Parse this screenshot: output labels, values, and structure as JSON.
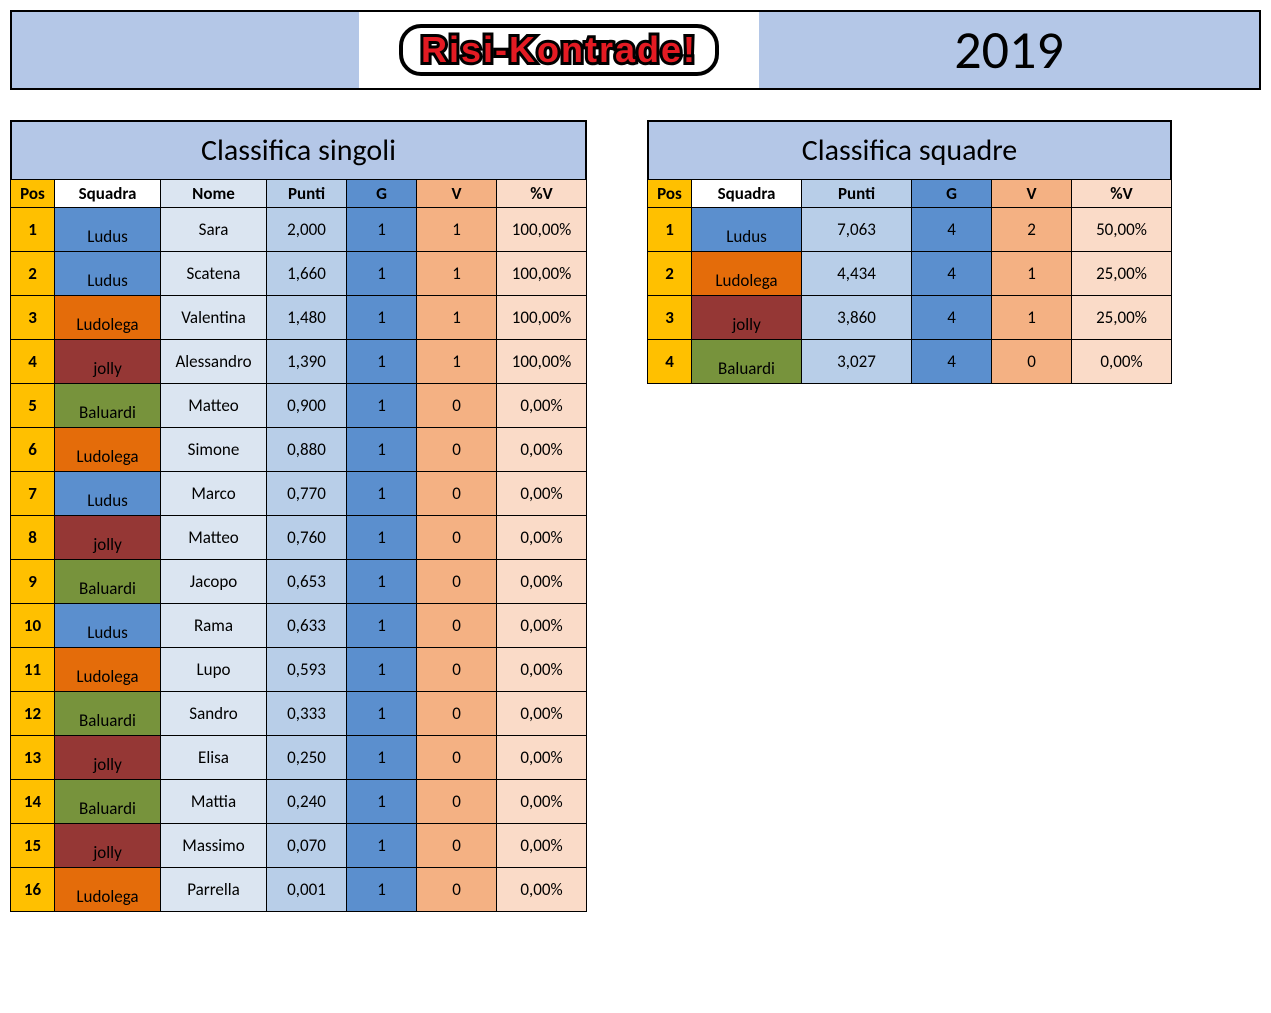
{
  "header": {
    "logo_text": "Risi-Kontrade!",
    "year": "2019"
  },
  "team_colors": {
    "Ludus": "#5b8fce",
    "Ludolega": "#e46c0a",
    "jolly": "#953735",
    "Baluardi": "#77933c"
  },
  "singles": {
    "title": "Classifica singoli",
    "columns": {
      "pos": "Pos",
      "squadra": "Squadra",
      "nome": "Nome",
      "punti": "Punti",
      "g": "G",
      "v": "V",
      "pv": "%V"
    },
    "rows": [
      {
        "pos": "1",
        "squadra": "Ludus",
        "nome": "Sara",
        "punti": "2,000",
        "g": "1",
        "v": "1",
        "pv": "100,00%"
      },
      {
        "pos": "2",
        "squadra": "Ludus",
        "nome": "Scatena",
        "punti": "1,660",
        "g": "1",
        "v": "1",
        "pv": "100,00%"
      },
      {
        "pos": "3",
        "squadra": "Ludolega",
        "nome": "Valentina",
        "punti": "1,480",
        "g": "1",
        "v": "1",
        "pv": "100,00%"
      },
      {
        "pos": "4",
        "squadra": "jolly",
        "nome": "Alessandro",
        "punti": "1,390",
        "g": "1",
        "v": "1",
        "pv": "100,00%"
      },
      {
        "pos": "5",
        "squadra": "Baluardi",
        "nome": "Matteo",
        "punti": "0,900",
        "g": "1",
        "v": "0",
        "pv": "0,00%"
      },
      {
        "pos": "6",
        "squadra": "Ludolega",
        "nome": "Simone",
        "punti": "0,880",
        "g": "1",
        "v": "0",
        "pv": "0,00%"
      },
      {
        "pos": "7",
        "squadra": "Ludus",
        "nome": "Marco",
        "punti": "0,770",
        "g": "1",
        "v": "0",
        "pv": "0,00%"
      },
      {
        "pos": "8",
        "squadra": "jolly",
        "nome": "Matteo",
        "punti": "0,760",
        "g": "1",
        "v": "0",
        "pv": "0,00%"
      },
      {
        "pos": "9",
        "squadra": "Baluardi",
        "nome": "Jacopo",
        "punti": "0,653",
        "g": "1",
        "v": "0",
        "pv": "0,00%"
      },
      {
        "pos": "10",
        "squadra": "Ludus",
        "nome": "Rama",
        "punti": "0,633",
        "g": "1",
        "v": "0",
        "pv": "0,00%"
      },
      {
        "pos": "11",
        "squadra": "Ludolega",
        "nome": "Lupo",
        "punti": "0,593",
        "g": "1",
        "v": "0",
        "pv": "0,00%"
      },
      {
        "pos": "12",
        "squadra": "Baluardi",
        "nome": "Sandro",
        "punti": "0,333",
        "g": "1",
        "v": "0",
        "pv": "0,00%"
      },
      {
        "pos": "13",
        "squadra": "jolly",
        "nome": "Elisa",
        "punti": "0,250",
        "g": "1",
        "v": "0",
        "pv": "0,00%"
      },
      {
        "pos": "14",
        "squadra": "Baluardi",
        "nome": "Mattia",
        "punti": "0,240",
        "g": "1",
        "v": "0",
        "pv": "0,00%"
      },
      {
        "pos": "15",
        "squadra": "jolly",
        "nome": "Massimo",
        "punti": "0,070",
        "g": "1",
        "v": "0",
        "pv": "0,00%"
      },
      {
        "pos": "16",
        "squadra": "Ludolega",
        "nome": "Parrella",
        "punti": "0,001",
        "g": "1",
        "v": "0",
        "pv": "0,00%"
      }
    ]
  },
  "teams": {
    "title": "Classifica squadre",
    "columns": {
      "pos": "Pos",
      "squadra": "Squadra",
      "punti": "Punti",
      "g": "G",
      "v": "V",
      "pv": "%V"
    },
    "rows": [
      {
        "pos": "1",
        "squadra": "Ludus",
        "punti": "7,063",
        "g": "4",
        "v": "2",
        "pv": "50,00%"
      },
      {
        "pos": "2",
        "squadra": "Ludolega",
        "punti": "4,434",
        "g": "4",
        "v": "1",
        "pv": "25,00%"
      },
      {
        "pos": "3",
        "squadra": "jolly",
        "punti": "3,860",
        "g": "4",
        "v": "1",
        "pv": "25,00%"
      },
      {
        "pos": "4",
        "squadra": "Baluardi",
        "punti": "3,027",
        "g": "4",
        "v": "0",
        "pv": "0,00%"
      }
    ]
  }
}
